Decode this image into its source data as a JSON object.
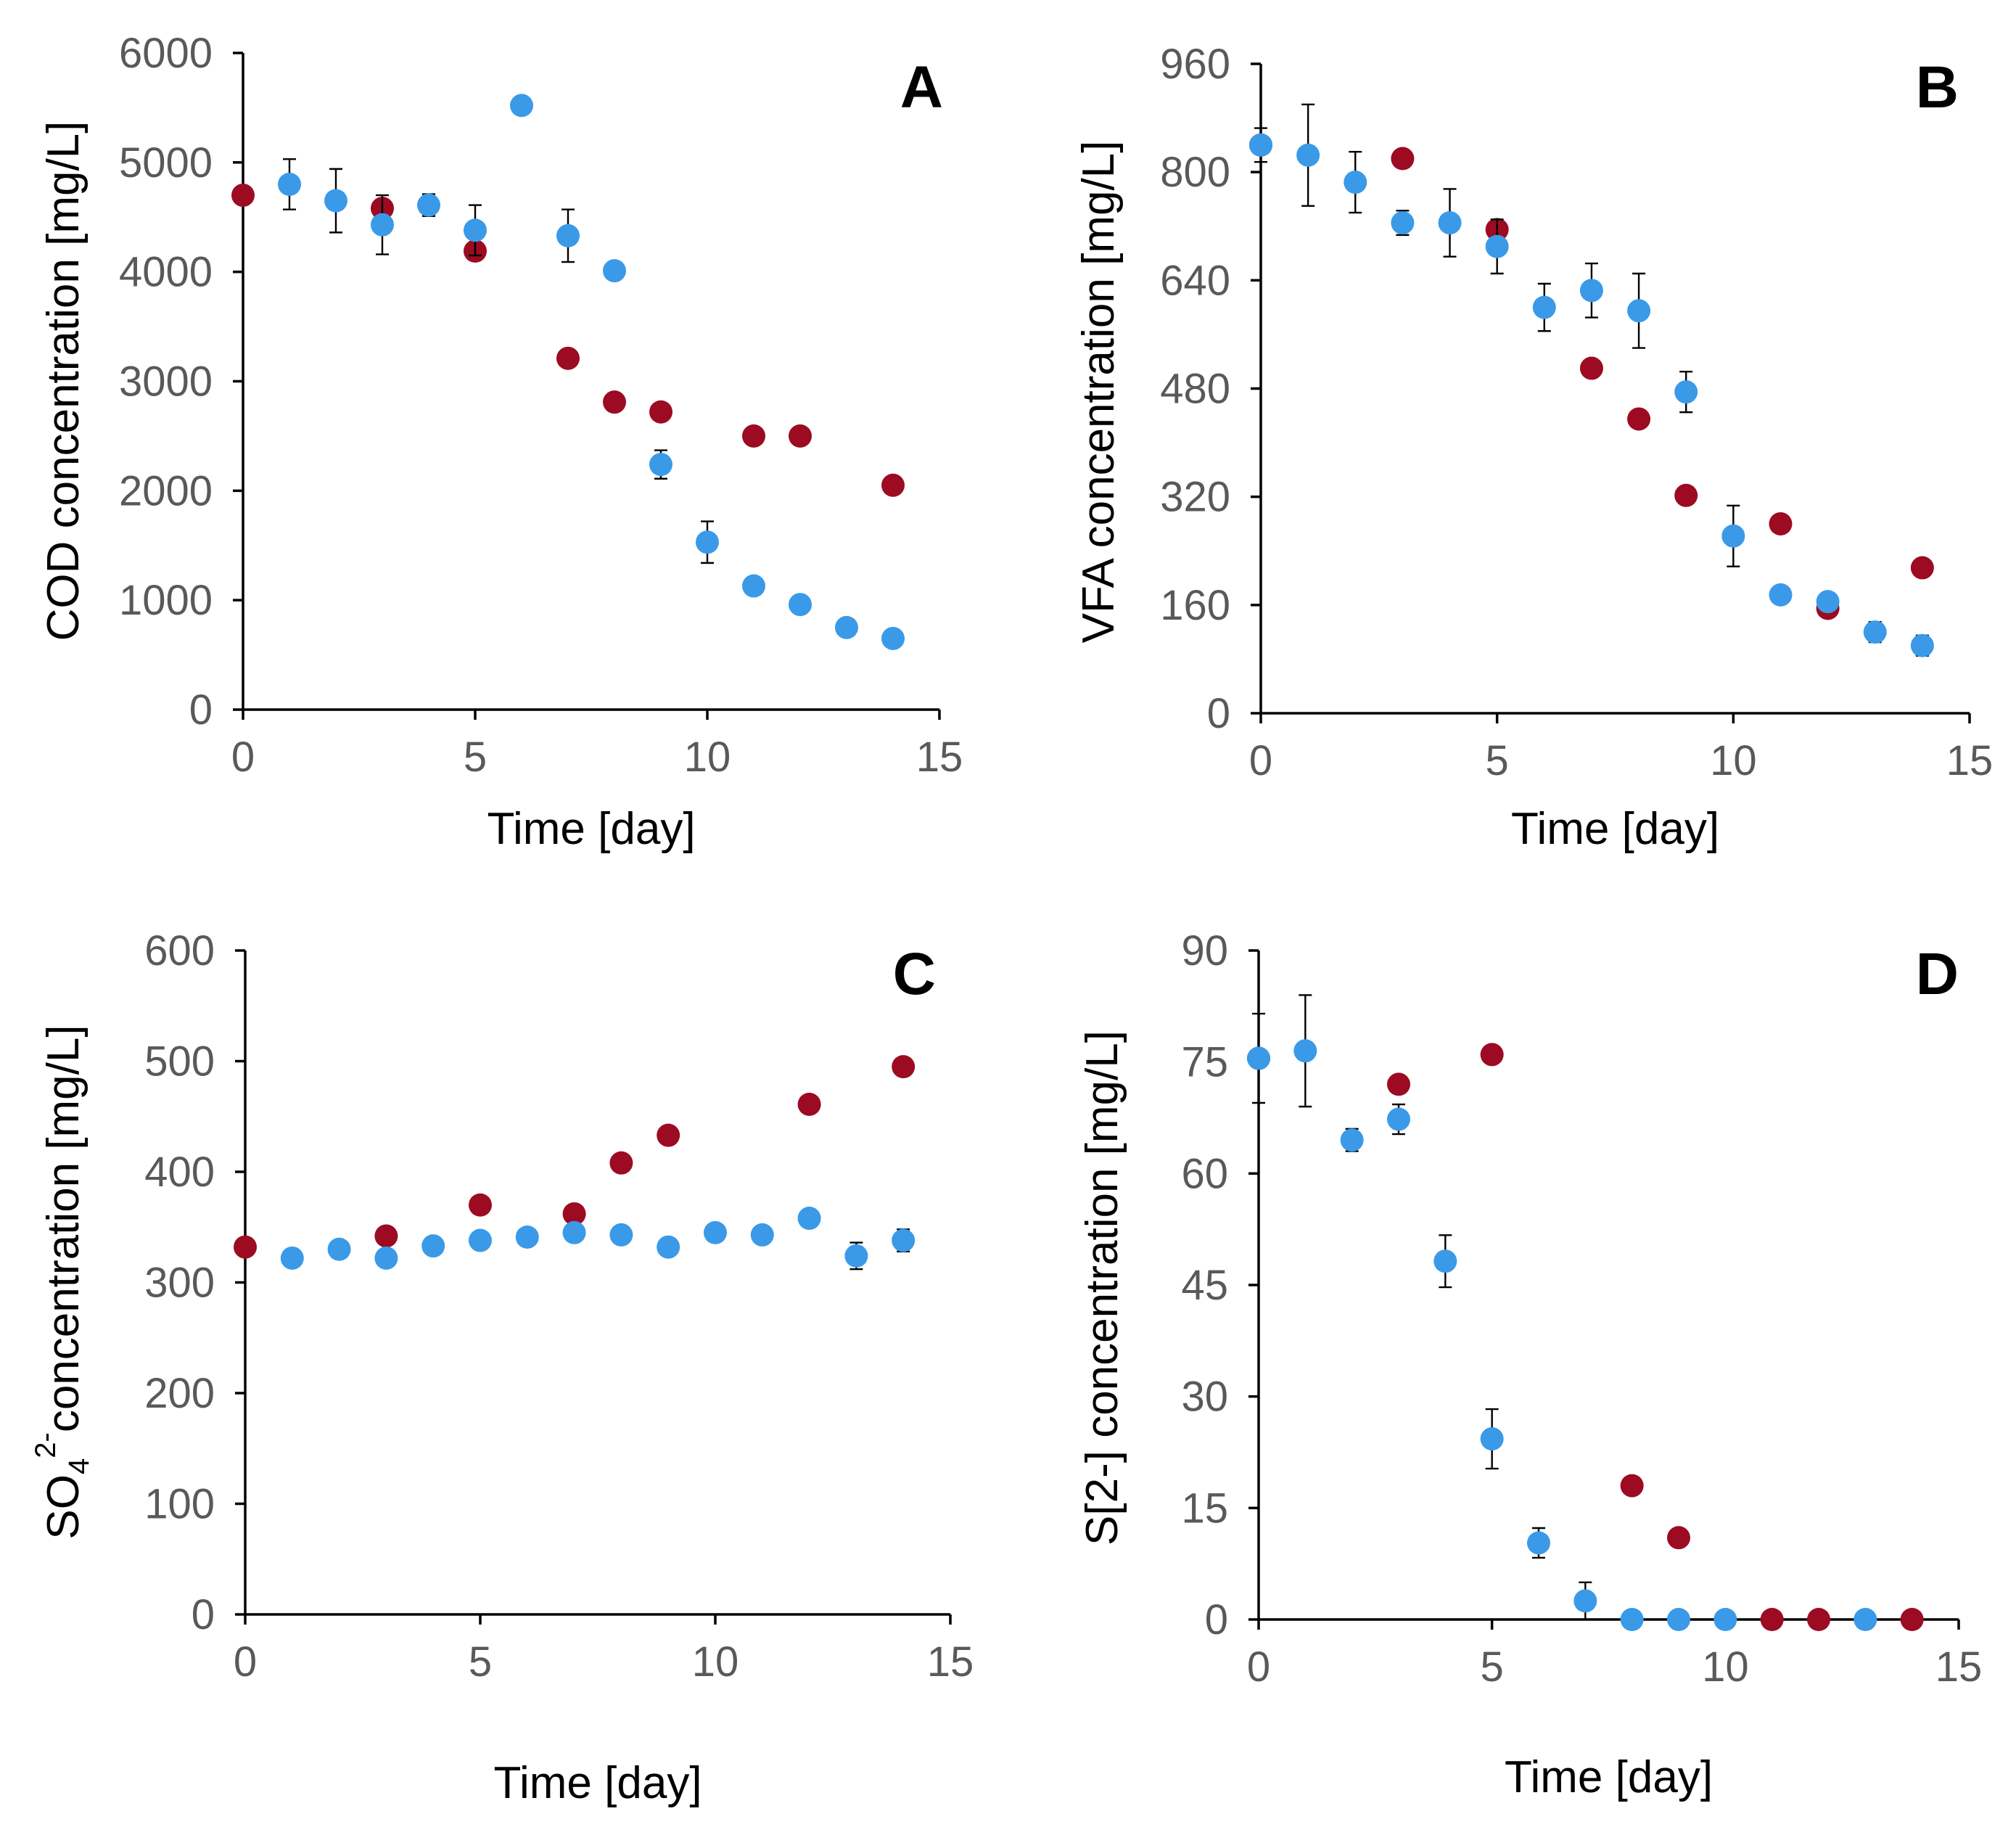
{
  "colors": {
    "series_blue": "#3a9ae8",
    "series_red": "#9c0b22",
    "axis": "#000000",
    "tick_text": "#595959"
  },
  "chart_data": [
    {
      "panel": "A",
      "type": "scatter",
      "xlabel": "Time [day]",
      "ylabel": "COD concentration [mg/L]",
      "xlim": [
        0,
        15
      ],
      "ylim": [
        0,
        6000
      ],
      "xticks": [
        "0",
        "5",
        "10",
        "15"
      ],
      "yticks": [
        "0",
        "1000",
        "2000",
        "3000",
        "4000",
        "5000",
        "6000"
      ],
      "grid": false,
      "series": [
        {
          "name": "red",
          "color": "#9c0b22",
          "points": [
            [
              0,
              4700
            ],
            [
              3,
              4580
            ],
            [
              5,
              4190
            ],
            [
              7,
              3210
            ],
            [
              8,
              2810
            ],
            [
              9,
              2720
            ],
            [
              11,
              2500
            ],
            [
              12,
              2500
            ],
            [
              14,
              2050
            ]
          ]
        },
        {
          "name": "blue",
          "color": "#3a9ae8",
          "points": [
            [
              1,
              4800,
              230
            ],
            [
              2,
              4650,
              290
            ],
            [
              3,
              4430,
              270
            ],
            [
              4,
              4610,
              100
            ],
            [
              5,
              4380,
              230
            ],
            [
              6,
              5520,
              70
            ],
            [
              7,
              4330,
              240
            ],
            [
              8,
              4010,
              50
            ],
            [
              9,
              2240,
              130
            ],
            [
              10,
              1530,
              190
            ],
            [
              11,
              1130,
              80
            ],
            [
              12,
              960,
              0
            ],
            [
              13,
              750,
              0
            ],
            [
              14,
              650,
              0
            ]
          ]
        }
      ]
    },
    {
      "panel": "B",
      "type": "scatter",
      "xlabel": "Time [day]",
      "ylabel": "VFA concentration [mg/L]",
      "xlim": [
        0,
        15
      ],
      "ylim": [
        0,
        960
      ],
      "xticks": [
        "0",
        "5",
        "10",
        "15"
      ],
      "yticks": [
        "0",
        "160",
        "320",
        "480",
        "640",
        "800",
        "960"
      ],
      "grid": false,
      "series": [
        {
          "name": "red",
          "color": "#9c0b22",
          "points": [
            [
              0,
              840
            ],
            [
              3,
              820
            ],
            [
              5,
              715
            ],
            [
              7,
              510
            ],
            [
              8,
              435
            ],
            [
              9,
              322
            ],
            [
              11,
              280
            ],
            [
              12,
              155
            ],
            [
              14,
              215
            ]
          ]
        },
        {
          "name": "blue",
          "color": "#3a9ae8",
          "points": [
            [
              0,
              840,
              25
            ],
            [
              1,
              825,
              75
            ],
            [
              2,
              785,
              45
            ],
            [
              3,
              725,
              18
            ],
            [
              4,
              725,
              50
            ],
            [
              5,
              690,
              40
            ],
            [
              6,
              600,
              35
            ],
            [
              7,
              625,
              40
            ],
            [
              8,
              595,
              55
            ],
            [
              9,
              475,
              30
            ],
            [
              10,
              262,
              45
            ],
            [
              11,
              175,
              0
            ],
            [
              12,
              165,
              8
            ],
            [
              13,
              120,
              15
            ],
            [
              14,
              100,
              15
            ]
          ]
        }
      ]
    },
    {
      "panel": "C",
      "type": "scatter",
      "xlabel": "Time [day]",
      "ylabel": "SO4 2- concentration [mg/L]",
      "ylabel_parts": {
        "main": "SO",
        "sub": "4",
        "sup": "2-",
        "rest": "concentration [mg/L]"
      },
      "xlim": [
        0,
        15
      ],
      "ylim": [
        0,
        600
      ],
      "xticks": [
        "0",
        "5",
        "10",
        "15"
      ],
      "yticks": [
        "0",
        "100",
        "200",
        "300",
        "400",
        "500",
        "600"
      ],
      "grid": false,
      "series": [
        {
          "name": "red",
          "color": "#9c0b22",
          "points": [
            [
              0,
              332
            ],
            [
              3,
              342
            ],
            [
              5,
              370
            ],
            [
              7,
              362
            ],
            [
              8,
              408
            ],
            [
              9,
              433
            ],
            [
              12,
              461
            ],
            [
              14,
              495
            ]
          ]
        },
        {
          "name": "blue",
          "color": "#3a9ae8",
          "points": [
            [
              1,
              322,
              0
            ],
            [
              2,
              330,
              6
            ],
            [
              3,
              322,
              0
            ],
            [
              4,
              333,
              0
            ],
            [
              5,
              338,
              0
            ],
            [
              6,
              341,
              0
            ],
            [
              7,
              345,
              0
            ],
            [
              8,
              343,
              0
            ],
            [
              9,
              332,
              0
            ],
            [
              10,
              345,
              0
            ],
            [
              11,
              343,
              0
            ],
            [
              12,
              358,
              8
            ],
            [
              13,
              324,
              12
            ],
            [
              14,
              338,
              10
            ]
          ]
        }
      ]
    },
    {
      "panel": "D",
      "type": "scatter",
      "xlabel": "Time [day]",
      "ylabel": "S[2-] concentration [mg/L]",
      "xlim": [
        0,
        15
      ],
      "ylim": [
        0,
        90
      ],
      "xticks": [
        "0",
        "5",
        "10",
        "15"
      ],
      "yticks": [
        "0",
        "15",
        "30",
        "45",
        "60",
        "75",
        "90"
      ],
      "grid": false,
      "series": [
        {
          "name": "red",
          "color": "#9c0b22",
          "points": [
            [
              0,
              75.5
            ],
            [
              3,
              72
            ],
            [
              5,
              76
            ],
            [
              8,
              18
            ],
            [
              9,
              11
            ],
            [
              11,
              0
            ],
            [
              12,
              0
            ],
            [
              14,
              0
            ]
          ]
        },
        {
          "name": "blue",
          "color": "#3a9ae8",
          "points": [
            [
              0,
              75.5,
              6
            ],
            [
              1,
              76.5,
              7.5
            ],
            [
              2,
              64.5,
              1.5
            ],
            [
              3,
              67.3,
              2
            ],
            [
              4,
              48.2,
              3.5
            ],
            [
              5,
              24.3,
              4
            ],
            [
              6,
              10.3,
              2
            ],
            [
              7,
              2.5,
              2.5
            ],
            [
              8,
              0,
              0
            ],
            [
              9,
              0,
              0
            ],
            [
              10,
              0,
              0
            ],
            [
              13,
              0,
              0
            ]
          ]
        }
      ]
    }
  ]
}
